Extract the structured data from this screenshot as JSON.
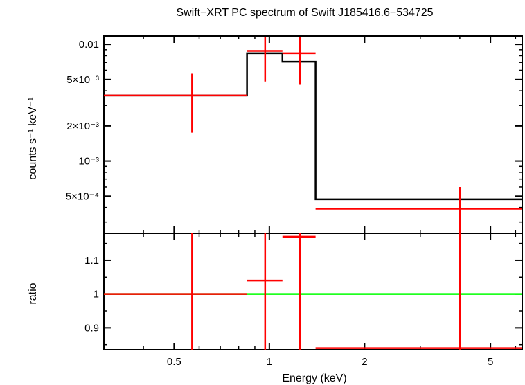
{
  "chart_data": {
    "title": "Swift−XRT PC spectrum of Swift J185416.6−534725",
    "xlabel": "Energy (keV)",
    "x_scale": "log",
    "xlim": [
      0.3,
      6.3
    ],
    "x_ticks": [
      {
        "value": 0.5,
        "label": "0.5"
      },
      {
        "value": 1,
        "label": "1"
      },
      {
        "value": 2,
        "label": "2"
      },
      {
        "value": 5,
        "label": "5"
      }
    ],
    "colors": {
      "data": "#ff0000",
      "model": "#000000",
      "unity": "#00ff00",
      "frame": "#000000"
    },
    "panels": [
      {
        "name": "spectrum",
        "type": "step+errorbar",
        "ylabel": "counts s⁻¹ keV⁻¹",
        "y_scale": "log",
        "ylim": [
          0.00024,
          0.0118
        ],
        "y_ticks": [
          {
            "value": 0.01,
            "label": "0.01"
          },
          {
            "value": 0.005,
            "label": "5×10⁻³"
          },
          {
            "value": 0.002,
            "label": "2×10⁻³"
          },
          {
            "value": 0.001,
            "label": "10⁻³"
          },
          {
            "value": 0.0005,
            "label": "5×10⁻⁴"
          }
        ],
        "data": [
          {
            "x_lo": 0.3,
            "x_hi": 0.85,
            "x": 0.57,
            "y": 0.00365,
            "y_lo": 0.00175,
            "y_hi": 0.0056
          },
          {
            "x_lo": 0.85,
            "x_hi": 1.1,
            "x": 0.97,
            "y": 0.0088,
            "y_lo": 0.0048,
            "y_hi": 0.0115
          },
          {
            "x_lo": 1.1,
            "x_hi": 1.4,
            "x": 1.25,
            "y": 0.0084,
            "y_lo": 0.0045,
            "y_hi": 0.0115
          },
          {
            "x_lo": 1.4,
            "x_hi": 6.3,
            "x": 4.0,
            "y": 0.00039,
            "y_lo": 0.00024,
            "y_hi": 0.0006
          }
        ],
        "model": [
          {
            "x_lo": 0.3,
            "x_hi": 0.85,
            "y": 0.00365
          },
          {
            "x_lo": 0.85,
            "x_hi": 1.1,
            "y": 0.0084
          },
          {
            "x_lo": 1.1,
            "x_hi": 1.4,
            "y": 0.0071
          },
          {
            "x_lo": 1.4,
            "x_hi": 6.3,
            "y": 0.00047
          }
        ]
      },
      {
        "name": "ratio",
        "type": "errorbar",
        "ylabel": "ratio",
        "y_scale": "linear",
        "ylim": [
          0.835,
          1.18
        ],
        "y_ticks": [
          {
            "value": 1.1,
            "label": "1.1"
          },
          {
            "value": 1,
            "label": "1"
          },
          {
            "value": 0.9,
            "label": "0.9"
          }
        ],
        "reference_line": 1.0,
        "data": [
          {
            "x_lo": 0.3,
            "x_hi": 0.85,
            "x": 0.57,
            "y": 1.0,
            "y_lo": 0.835,
            "y_hi": 1.18
          },
          {
            "x_lo": 0.85,
            "x_hi": 1.1,
            "x": 0.97,
            "y": 1.04,
            "y_lo": 0.835,
            "y_hi": 1.18
          },
          {
            "x_lo": 1.1,
            "x_hi": 1.4,
            "x": 1.25,
            "y": 1.17,
            "y_lo": 0.835,
            "y_hi": 1.18
          },
          {
            "x_lo": 1.4,
            "x_hi": 6.3,
            "x": 4.0,
            "y": 0.84,
            "y_lo": 0.835,
            "y_hi": 1.18
          }
        ]
      }
    ]
  }
}
